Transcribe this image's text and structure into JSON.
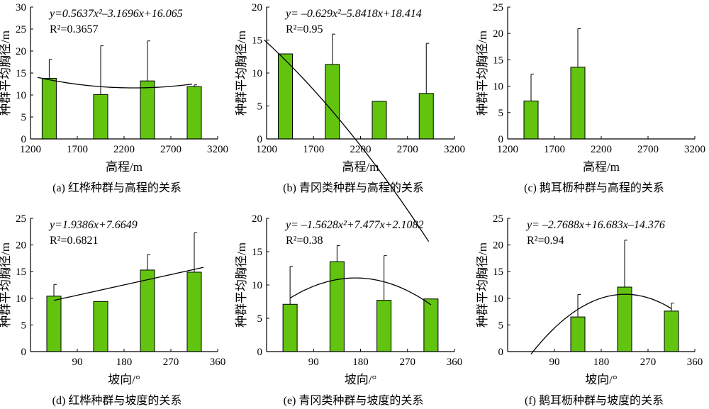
{
  "chart_data": [
    {
      "id": "a",
      "type": "bar",
      "caption": "(a) 红桦种群与高程的关系",
      "xlabel": "高程/m",
      "ylabel": "种群平均胸径/m",
      "xlim": [
        1200,
        3200
      ],
      "xticks": [
        1200,
        1700,
        2200,
        2700,
        3200
      ],
      "ylim": [
        0,
        30
      ],
      "yticks": [
        0,
        5,
        10,
        15,
        20,
        25,
        30
      ],
      "bars": [
        {
          "x": 1400,
          "value": 13.8,
          "err": 4.3
        },
        {
          "x": 1950,
          "value": 10.1,
          "err": 11.1
        },
        {
          "x": 2450,
          "value": 13.2,
          "err": 9.1
        },
        {
          "x": 2950,
          "value": 11.9,
          "err": 0.4
        }
      ],
      "equation": "y=0.5637x²–3.1696x+16.065",
      "r2": "R²=0.3657",
      "fit": {
        "kind": "quadratic",
        "coef": [
          0.5637,
          -3.1696,
          16.065
        ],
        "t_from": 0.75,
        "t_to": 4.05,
        "x0": 1400,
        "dx": 500
      }
    },
    {
      "id": "b",
      "type": "bar",
      "caption": "(b) 青冈类种群与高程的关系",
      "xlabel": "高程/m",
      "ylabel": "种群平均胸径/m",
      "xlim": [
        1200,
        3200
      ],
      "xticks": [
        1200,
        1700,
        2200,
        2700,
        3200
      ],
      "ylim": [
        0,
        20
      ],
      "yticks": [
        0,
        5,
        10,
        15,
        20
      ],
      "bars": [
        {
          "x": 1400,
          "value": 12.9,
          "err": 0
        },
        {
          "x": 1900,
          "value": 11.3,
          "err": 4.6
        },
        {
          "x": 2400,
          "value": 5.7,
          "err": 0
        },
        {
          "x": 2900,
          "value": 6.9,
          "err": 7.6
        }
      ],
      "equation": "y= –0.629x²–5.8418x+18.414",
      "r2": "R²=0.95",
      "fit": {
        "kind": "quadratic",
        "coef": [
          -0.629,
          -5.8418,
          18.414
        ],
        "t_from": 0.55,
        "t_to": 4.05,
        "x0": 1400,
        "dx": 500
      }
    },
    {
      "id": "c",
      "type": "bar",
      "caption": "(c) 鹅耳枥种群与高程的关系",
      "xlabel": "高程/m",
      "ylabel": "种群平均胸径/m",
      "xlim": [
        1200,
        3200
      ],
      "xticks": [
        1200,
        1700,
        2200,
        2700,
        3200
      ],
      "ylim": [
        0,
        25
      ],
      "yticks": [
        0,
        5,
        10,
        15,
        20,
        25
      ],
      "bars": [
        {
          "x": 1450,
          "value": 7.2,
          "err": 5.1
        },
        {
          "x": 1950,
          "value": 13.6,
          "err": 7.3
        }
      ]
    },
    {
      "id": "d",
      "type": "bar",
      "caption": "(d) 红桦种群与坡度的关系",
      "xlabel": "坡向/°",
      "ylabel": "种群平均胸径/m",
      "xlim": [
        0,
        360
      ],
      "xticks": [
        90,
        180,
        270,
        360
      ],
      "ylim": [
        0,
        25
      ],
      "yticks": [
        0,
        5,
        10,
        15,
        20,
        25
      ],
      "bars": [
        {
          "x": 45,
          "value": 10.4,
          "err": 2.2
        },
        {
          "x": 135,
          "value": 9.4,
          "err": 0
        },
        {
          "x": 225,
          "value": 15.3,
          "err": 2.9
        },
        {
          "x": 315,
          "value": 14.9,
          "err": 7.4
        }
      ],
      "equation": "y=1.9386x+7.6649",
      "r2": "R²=0.6821",
      "fit": {
        "kind": "quadratic",
        "coef": [
          0,
          1.9386,
          7.6649
        ],
        "t_from": 1.0,
        "t_to": 4.2,
        "x0": 45,
        "dx": 90
      }
    },
    {
      "id": "e",
      "type": "bar",
      "caption": "(e) 青冈类种群与坡度的关系",
      "xlabel": "坡向/°",
      "ylabel": "种群平均胸径/m",
      "xlim": [
        0,
        360
      ],
      "xticks": [
        90,
        180,
        270,
        360
      ],
      "ylim": [
        0,
        20
      ],
      "yticks": [
        0,
        5,
        10,
        15,
        20
      ],
      "bars": [
        {
          "x": 45,
          "value": 7.1,
          "err": 5.7
        },
        {
          "x": 135,
          "value": 13.5,
          "err": 2.4
        },
        {
          "x": 225,
          "value": 7.7,
          "err": 6.7
        },
        {
          "x": 315,
          "value": 7.9,
          "err": 0
        }
      ],
      "equation": "y= –1.5628x²+7.477x+2.1082",
      "r2": "R²=0.38",
      "fit": {
        "kind": "quadratic",
        "coef": [
          -1.5628,
          7.477,
          2.1082
        ],
        "t_from": 1.0,
        "t_to": 4.0,
        "x0": 45,
        "dx": 90
      }
    },
    {
      "id": "f",
      "type": "bar",
      "caption": "(f) 鹅耳枥种群与坡度的关系",
      "xlabel": "坡向/°",
      "ylabel": "种群平均胸径/m",
      "xlim": [
        0,
        360
      ],
      "xticks": [
        90,
        180,
        270,
        360
      ],
      "ylim": [
        0,
        25
      ],
      "yticks": [
        0,
        5,
        10,
        15,
        20,
        25
      ],
      "bars": [
        {
          "x": 135,
          "value": 6.5,
          "err": 4.2
        },
        {
          "x": 225,
          "value": 12.1,
          "err": 8.8
        },
        {
          "x": 315,
          "value": 7.6,
          "err": 1.5
        }
      ],
      "equation": "y= –2.7688x+16.683x–14.376",
      "r2": "R²=0.94",
      "fit": {
        "kind": "quadratic",
        "coef": [
          -2.7688,
          16.683,
          -14.376
        ],
        "t_from": 1.0,
        "t_to": 4.0,
        "x0": 45,
        "dx": 90
      }
    }
  ]
}
